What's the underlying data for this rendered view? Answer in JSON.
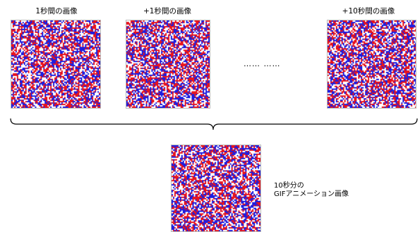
{
  "frames": [
    {
      "label": "1秒間の画像"
    },
    {
      "label": "+1秒間の画像"
    },
    {
      "label": "+10秒間の画像"
    }
  ],
  "ellipsis": "…… ……",
  "result": {
    "caption_line1": "10秒分の",
    "caption_line2": "GIFアニメーション画像"
  },
  "colors": {
    "red": "#e8141e",
    "blue": "#1e1ee0",
    "white": "#ffffff"
  }
}
